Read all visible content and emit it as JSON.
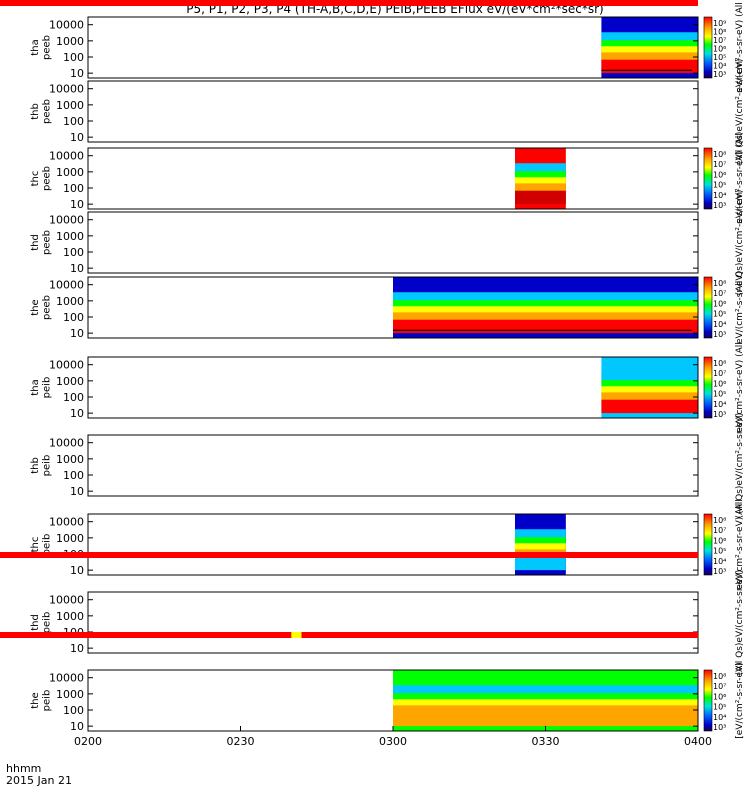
{
  "title": "P5, P1, P2, P3, P4 (TH-A,B,C,D,E) PEIB,PEEB EFlux eV/(eV*cm²*sec*sr)",
  "footer": {
    "label": "hhmm",
    "date": "2015 Jan 21"
  },
  "x_ticks": [
    "0200",
    "0230",
    "0300",
    "0330",
    "0400"
  ],
  "y_ticks": [
    "10",
    "100",
    "1000",
    "10000"
  ],
  "colorbar_unit": "eV/(cm²-s-sr-eV)",
  "colorscale": [
    "#ff0000",
    "#ffa500",
    "#ffff00",
    "#7fff00",
    "#00ff00",
    "#00e0a0",
    "#00c8ff",
    "#0064ff",
    "#0000c8",
    "#1a0050"
  ],
  "chart_data": {
    "type": "heatmap",
    "x_range": [
      "0200",
      "0400"
    ],
    "y_range": [
      5,
      30000
    ],
    "y_scale": "log",
    "panels": [
      {
        "ylabel": "tha peeb",
        "data": {
          "start": "0341",
          "end": "0400",
          "background": "#0000c8",
          "low_band": "#ff0000",
          "trace": true
        },
        "colorbar": {
          "ticks": [
            "10⁹",
            "10⁸",
            "10⁷",
            "10⁶",
            "10⁵",
            "10⁴",
            "10³"
          ],
          "label": "eV/(cm²-s-sr-eV) (All"
        }
      },
      {
        "ylabel": "thb peeb",
        "data": null,
        "colorbar": {
          "ticks": [],
          "label": "(All Qs)eV/(cm²-s-sr-eV)"
        }
      },
      {
        "ylabel": "thc peeb",
        "data": {
          "start": "0324",
          "end": "0334",
          "background": "#ff0000",
          "low_band": "#d00000",
          "trace": false
        },
        "colorbar": {
          "ticks": [
            "10⁸",
            "10⁷",
            "10⁶",
            "10⁵",
            "10⁴",
            "10³"
          ],
          "label": "eV/(cm²-s-sr-eV) (All"
        }
      },
      {
        "ylabel": "thd peeb",
        "data": null,
        "colorbar": {
          "ticks": [],
          "label": "(All Qs)eV/(cm²-s-sr-eV)"
        }
      },
      {
        "ylabel": "the peeb",
        "data": {
          "start": "0300",
          "end": "0400",
          "background": "#0000c8",
          "low_band": "#ff0000",
          "trace": true
        },
        "colorbar": {
          "ticks": [
            "10⁸",
            "10⁷",
            "10⁶",
            "10⁵",
            "10⁴",
            "10³"
          ],
          "label": "eV/(cm²-s-sr-eV)"
        }
      },
      {
        "ylabel": "tha peib",
        "data": {
          "start": "0341",
          "end": "0400",
          "background": "#00c8ff",
          "low_band": "#ff0000",
          "trace": false
        },
        "colorbar": {
          "ticks": [
            "10⁸",
            "10⁷",
            "10⁶",
            "10⁵",
            "10⁴",
            "10³"
          ],
          "label": "eV/(cm²-s-sr-eV) (All"
        }
      },
      {
        "ylabel": "thb peib",
        "data": null,
        "colorbar": {
          "ticks": [],
          "label": "(All Qs)eV/(cm²-s-sr-eV)"
        }
      },
      {
        "ylabel": "thc peib",
        "data": {
          "start": "0324",
          "end": "0334",
          "background": "#0000c8",
          "low_band": "#00c8ff",
          "trace": false
        },
        "colorbar": {
          "ticks": [
            "10⁸",
            "10⁷",
            "10⁶",
            "10⁵",
            "10⁴",
            "10³"
          ],
          "label": "eV/(cm²-s-sr-eV) (All"
        }
      },
      {
        "ylabel": "thd peib",
        "data": null,
        "colorbar": {
          "ticks": [],
          "label": "(All Qs)eV/(cm²-s-sr-eV)"
        }
      },
      {
        "ylabel": "the peib",
        "data": {
          "start": "0300",
          "end": "0400",
          "background": "#00ff00",
          "low_band": "#ffa500",
          "trace": false
        },
        "colorbar": {
          "ticks": [
            "10⁸",
            "10⁷",
            "10⁶",
            "10⁵",
            "10⁴",
            "10³"
          ],
          "label": "[eV/(cm²-s-sr-eV)"
        }
      }
    ],
    "status_bars": [
      {
        "after_panel": 4,
        "color": "#ff0000",
        "flags": []
      },
      {
        "after_panel": 5,
        "color": "#ff0000",
        "flags": [
          {
            "start": "0240",
            "end": "0242",
            "color": "#ffff00"
          }
        ]
      },
      {
        "after_panel": 6,
        "color": "#ff0000",
        "flags": []
      },
      {
        "after_panel": 7,
        "color": "#ffff00",
        "flags": []
      },
      {
        "after_panel": 8,
        "color": "#ff0000",
        "flags": []
      }
    ]
  }
}
